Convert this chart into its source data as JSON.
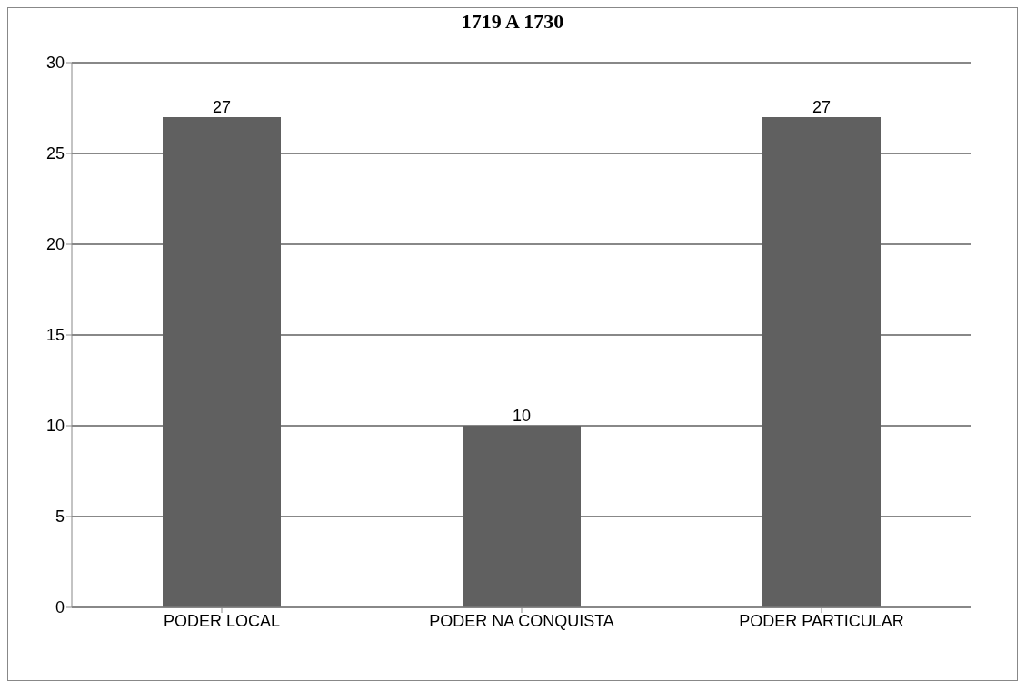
{
  "chart_data": {
    "type": "bar",
    "title": "1719 A 1730",
    "categories": [
      "PODER LOCAL",
      "PODER NA CONQUISTA",
      "PODER PARTICULAR"
    ],
    "values": [
      27,
      10,
      27
    ],
    "color": "#606060",
    "ylim": [
      0,
      30
    ],
    "yticks": [
      0,
      5,
      10,
      15,
      20,
      25,
      30
    ],
    "grid": "y",
    "data_labels": true,
    "legend": false
  }
}
